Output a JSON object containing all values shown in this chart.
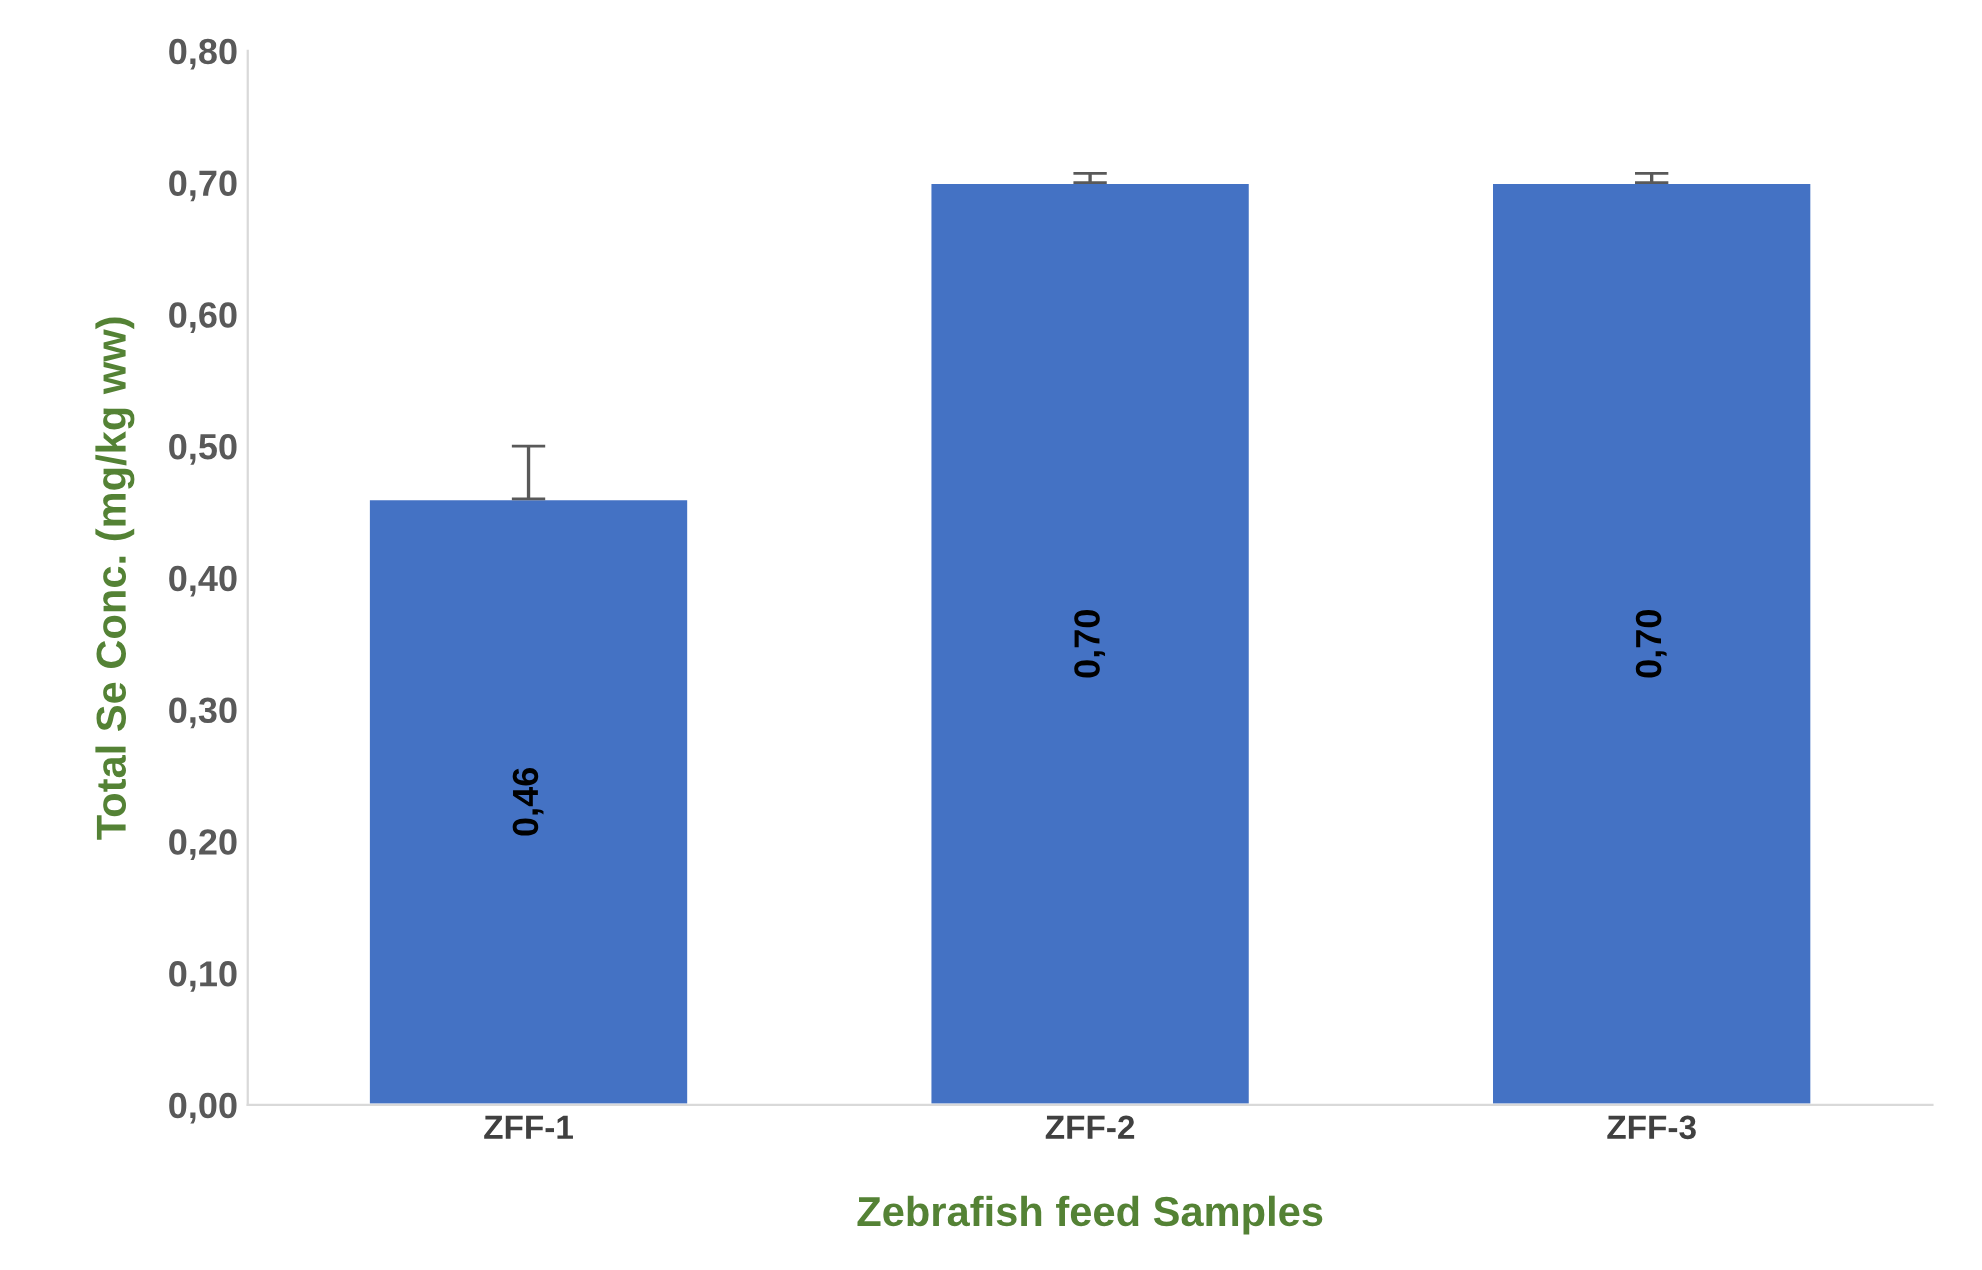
{
  "chart_data": {
    "type": "bar",
    "xlabel": "Zebrafish feed Samples",
    "ylabel": "Total Se Conc. (mg/kg ww)",
    "categories": [
      "ZFF-1",
      "ZFF-2",
      "ZFF-3"
    ],
    "values": [
      0.46,
      0.7,
      0.7
    ],
    "value_labels": [
      "0,46",
      "0,70",
      "0,70"
    ],
    "errors": [
      [
        0.46,
        0.5
      ],
      [
        0.7,
        0.707
      ],
      [
        0.7,
        0.707
      ]
    ],
    "color": "#4472c4",
    "ylim": [
      0,
      0.8
    ],
    "yticks": [
      {
        "value": 0,
        "label": "0,00"
      },
      {
        "value": 0.1,
        "label": "0,10"
      },
      {
        "value": 0.2,
        "label": "0,20"
      },
      {
        "value": 0.3,
        "label": "0,30"
      },
      {
        "value": 0.4,
        "label": "0,40"
      },
      {
        "value": 0.5,
        "label": "0,50"
      },
      {
        "value": 0.6,
        "label": "0,60"
      },
      {
        "value": 0.7,
        "label": "0,70"
      },
      {
        "value": 0.8,
        "label": "0,80"
      }
    ],
    "grid": false,
    "legend": false
  }
}
